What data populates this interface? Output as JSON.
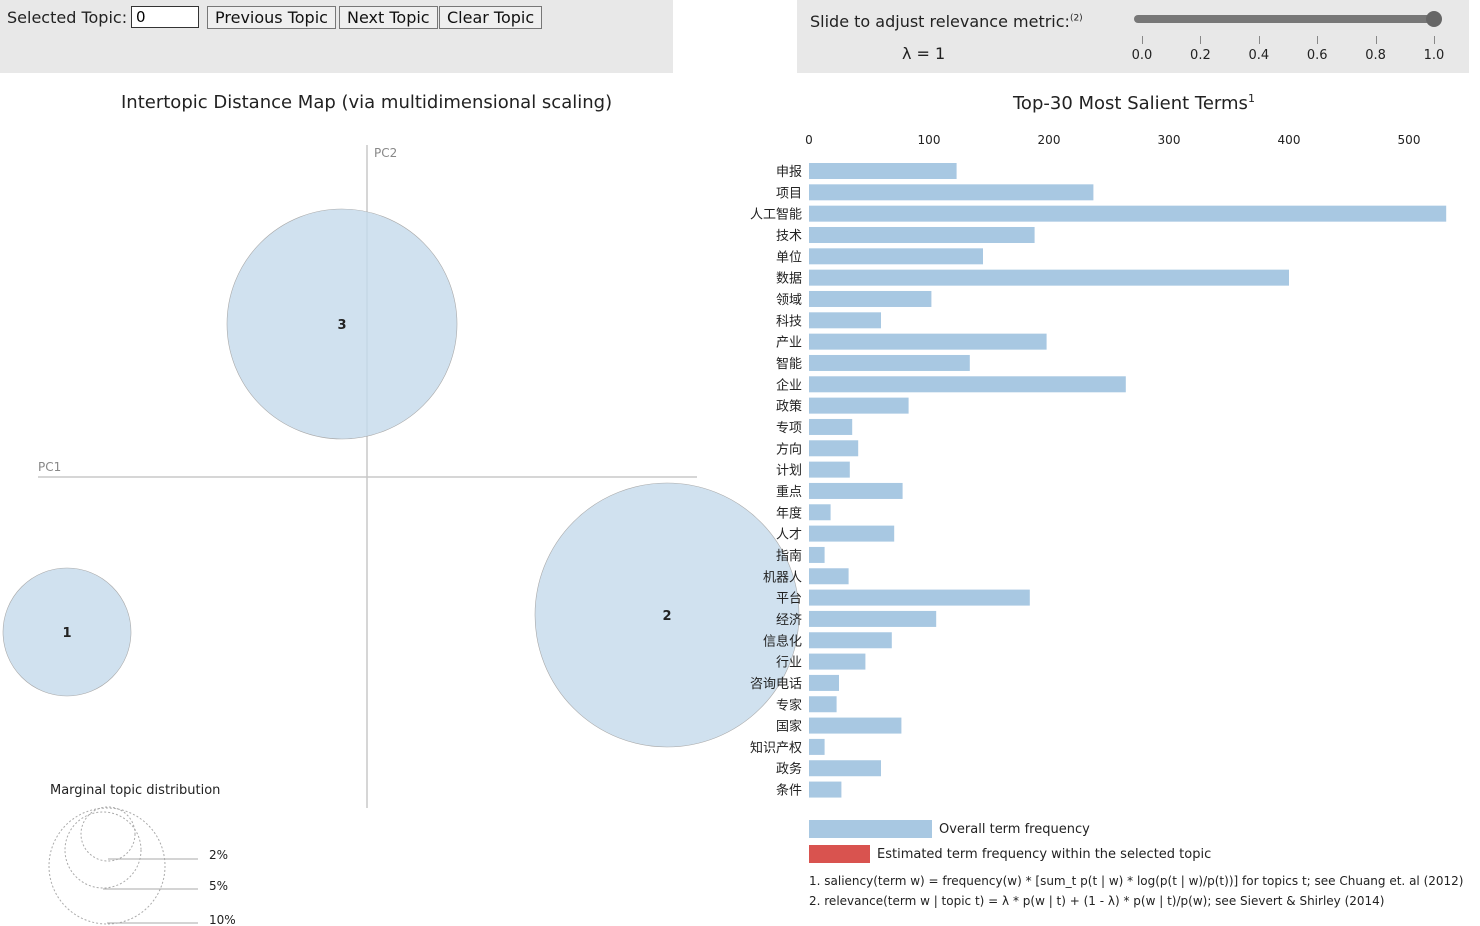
{
  "controls": {
    "selected_topic_label": "Selected Topic:",
    "selected_topic_value": "0",
    "previous_label": "Previous Topic",
    "next_label": "Next Topic",
    "clear_label": "Clear Topic",
    "slider_label": "Slide to adjust relevance metric:",
    "slider_sup": "(2)",
    "lambda_text": "λ = 1",
    "slider_value": 1.0,
    "slider_ticks": [
      "0.0",
      "0.2",
      "0.4",
      "0.6",
      "0.8",
      "1.0"
    ]
  },
  "left_title": "Intertopic Distance Map (via multidimensional scaling)",
  "right_title": "Top-30 Most Salient Terms",
  "right_title_sup": "1",
  "axes": {
    "pc1": "PC1",
    "pc2": "PC2"
  },
  "topics": [
    {
      "label": "1"
    },
    {
      "label": "2"
    },
    {
      "label": "3"
    }
  ],
  "marginal": {
    "title": "Marginal topic distribution",
    "labels": [
      "2%",
      "5%",
      "10%"
    ]
  },
  "chart_data": {
    "type": "bar",
    "orientation": "horizontal",
    "title": "Top-30 Most Salient Terms",
    "xlim": [
      0,
      540
    ],
    "xticks": [
      "0",
      "100",
      "200",
      "300",
      "400",
      "500"
    ],
    "categories": [
      "申报",
      "项目",
      "人工智能",
      "技术",
      "单位",
      "数据",
      "领域",
      "科技",
      "产业",
      "智能",
      "企业",
      "政策",
      "专项",
      "方向",
      "计划",
      "重点",
      "年度",
      "人才",
      "指南",
      "机器人",
      "平台",
      "经济",
      "信息化",
      "行业",
      "咨询电话",
      "专家",
      "国家",
      "知识产权",
      "政务",
      "条件"
    ],
    "series": [
      {
        "name": "Overall term frequency",
        "color": "#a8c8e2",
        "values": [
          123,
          237,
          531,
          188,
          145,
          400,
          102,
          60,
          198,
          134,
          264,
          83,
          36,
          41,
          34,
          78,
          18,
          71,
          13,
          33,
          184,
          106,
          69,
          47,
          25,
          23,
          77,
          13,
          60,
          27
        ]
      }
    ],
    "legend": [
      {
        "label": "Overall term frequency",
        "color": "#a8c8e2"
      },
      {
        "label": "Estimated term frequency within the selected topic",
        "color": "#d9534f"
      }
    ]
  },
  "footnotes": [
    "1. saliency(term w) = frequency(w) * [sum_t p(t | w) * log(p(t | w)/p(t))] for topics t; see Chuang et. al (2012)",
    "2. relevance(term w | topic t) = λ * p(w | t) + (1 - λ) * p(w | t)/p(w); see Sievert & Shirley (2014)"
  ]
}
